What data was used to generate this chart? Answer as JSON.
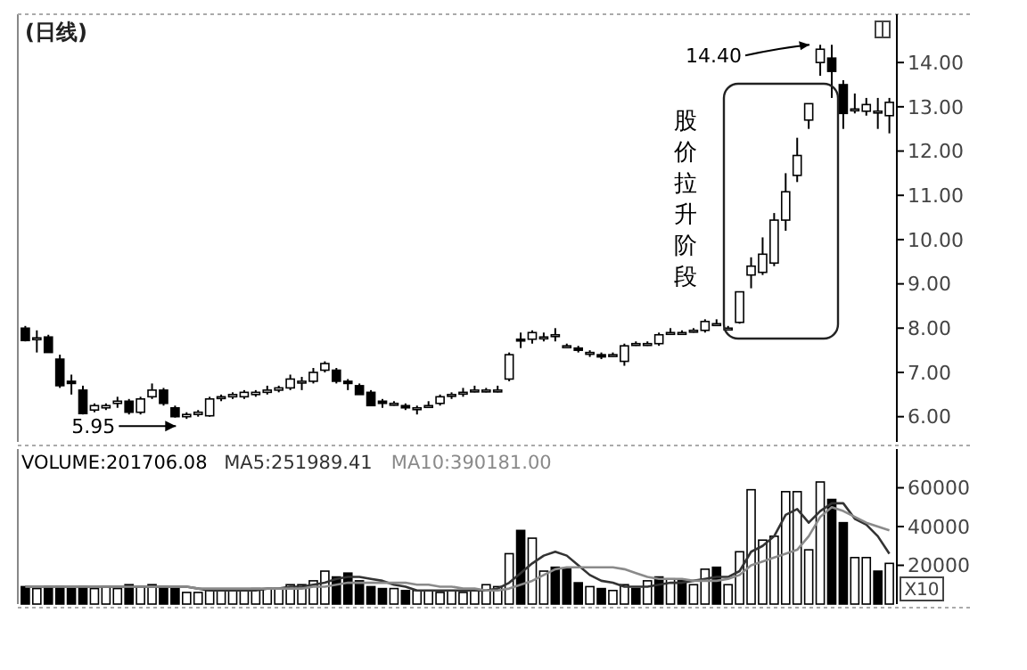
{
  "chart_data": [
    {
      "type": "candlestick",
      "title": "(日线)",
      "annotations": [
        "14.40",
        "5.95",
        "股价拉升阶段"
      ],
      "categories": [
        null,
        null,
        null,
        null,
        null,
        null,
        null,
        null,
        null,
        null,
        null,
        null,
        null,
        null,
        null,
        null,
        null,
        null,
        null,
        null,
        null,
        null,
        null,
        null,
        null,
        null,
        null,
        null,
        null,
        null,
        null,
        null,
        null,
        null,
        null,
        null,
        null,
        null,
        null,
        null,
        null,
        null,
        null,
        null,
        null,
        null,
        null,
        null,
        null,
        null,
        null,
        null,
        null,
        null,
        null,
        null,
        null,
        null,
        null,
        null,
        null,
        null,
        null,
        null,
        null,
        null,
        null,
        null,
        null,
        null,
        null,
        null,
        null,
        null,
        null,
        null
      ],
      "ohlc": [
        [
          8.0,
          8.05,
          7.7,
          7.72
        ],
        [
          7.75,
          7.95,
          7.45,
          7.78
        ],
        [
          7.8,
          7.85,
          7.45,
          7.45
        ],
        [
          7.3,
          7.4,
          6.65,
          6.7
        ],
        [
          6.8,
          6.95,
          6.5,
          6.75
        ],
        [
          6.6,
          6.7,
          6.05,
          6.07
        ],
        [
          6.15,
          6.3,
          6.1,
          6.25
        ],
        [
          6.2,
          6.3,
          6.15,
          6.25
        ],
        [
          6.3,
          6.45,
          6.2,
          6.35
        ],
        [
          6.35,
          6.4,
          6.05,
          6.1
        ],
        [
          6.1,
          6.45,
          6.05,
          6.4
        ],
        [
          6.45,
          6.75,
          6.4,
          6.6
        ],
        [
          6.6,
          6.65,
          6.25,
          6.3
        ],
        [
          6.2,
          6.25,
          5.98,
          6.0
        ],
        [
          6.0,
          6.1,
          5.95,
          6.05
        ],
        [
          6.05,
          6.15,
          6.0,
          6.1
        ],
        [
          6.02,
          6.45,
          6.0,
          6.4
        ],
        [
          6.42,
          6.5,
          6.35,
          6.45
        ],
        [
          6.45,
          6.55,
          6.4,
          6.5
        ],
        [
          6.45,
          6.6,
          6.4,
          6.55
        ],
        [
          6.5,
          6.6,
          6.45,
          6.55
        ],
        [
          6.55,
          6.7,
          6.5,
          6.6
        ],
        [
          6.6,
          6.7,
          6.55,
          6.65
        ],
        [
          6.65,
          6.95,
          6.6,
          6.85
        ],
        [
          6.8,
          6.9,
          6.6,
          6.8
        ],
        [
          6.8,
          7.1,
          6.75,
          7.0
        ],
        [
          7.05,
          7.25,
          7.0,
          7.2
        ],
        [
          7.05,
          7.1,
          6.75,
          6.8
        ],
        [
          6.8,
          6.85,
          6.6,
          6.75
        ],
        [
          6.7,
          6.75,
          6.5,
          6.5
        ],
        [
          6.55,
          6.6,
          6.25,
          6.25
        ],
        [
          6.35,
          6.4,
          6.2,
          6.3
        ],
        [
          6.3,
          6.35,
          6.25,
          6.3
        ],
        [
          6.25,
          6.3,
          6.15,
          6.2
        ],
        [
          6.2,
          6.25,
          6.05,
          6.2
        ],
        [
          6.25,
          6.35,
          6.2,
          6.25
        ],
        [
          6.3,
          6.5,
          6.25,
          6.45
        ],
        [
          6.5,
          6.55,
          6.4,
          6.5
        ],
        [
          6.55,
          6.65,
          6.45,
          6.55
        ],
        [
          6.6,
          6.7,
          6.55,
          6.6
        ],
        [
          6.6,
          6.65,
          6.55,
          6.6
        ],
        [
          6.6,
          6.7,
          6.55,
          6.6
        ],
        [
          6.85,
          7.45,
          6.8,
          7.4
        ],
        [
          7.75,
          7.9,
          7.55,
          7.72
        ],
        [
          7.75,
          7.95,
          7.65,
          7.9
        ],
        [
          7.8,
          7.9,
          7.7,
          7.8
        ],
        [
          7.85,
          8.0,
          7.7,
          7.85
        ],
        [
          7.6,
          7.65,
          7.55,
          7.6
        ],
        [
          7.55,
          7.6,
          7.45,
          7.5
        ],
        [
          7.45,
          7.5,
          7.35,
          7.45
        ],
        [
          7.4,
          7.45,
          7.3,
          7.35
        ],
        [
          7.4,
          7.45,
          7.35,
          7.4
        ],
        [
          7.25,
          7.65,
          7.15,
          7.6
        ],
        [
          7.65,
          7.7,
          7.6,
          7.65
        ],
        [
          7.65,
          7.7,
          7.6,
          7.65
        ],
        [
          7.65,
          7.9,
          7.6,
          7.85
        ],
        [
          7.9,
          8.0,
          7.85,
          7.9
        ],
        [
          7.9,
          7.95,
          7.85,
          7.9
        ],
        [
          7.95,
          8.0,
          7.9,
          7.95
        ],
        [
          7.95,
          8.2,
          7.9,
          8.15
        ],
        [
          8.1,
          8.2,
          8.05,
          8.1
        ],
        [
          8.0,
          8.05,
          7.95,
          8.0
        ],
        [
          8.13,
          8.82,
          8.1,
          8.82
        ],
        [
          9.2,
          9.6,
          8.9,
          9.4
        ],
        [
          9.26,
          10.05,
          9.2,
          9.67
        ],
        [
          9.47,
          10.6,
          9.4,
          10.44
        ],
        [
          10.44,
          11.5,
          10.2,
          11.08
        ],
        [
          11.45,
          12.3,
          11.3,
          11.9
        ],
        [
          12.7,
          13.07,
          12.5,
          13.07
        ],
        [
          14.0,
          14.4,
          13.7,
          14.3
        ],
        [
          14.1,
          14.4,
          13.2,
          13.8
        ],
        [
          13.5,
          13.6,
          12.5,
          12.85
        ],
        [
          12.95,
          13.3,
          12.85,
          12.95
        ],
        [
          12.9,
          13.2,
          12.8,
          13.05
        ],
        [
          12.9,
          13.2,
          12.5,
          12.9
        ],
        [
          12.8,
          13.2,
          12.4,
          13.1
        ]
      ],
      "ylim": [
        5.43,
        15.09
      ],
      "yticks": [
        {
          "value": 6,
          "label": "6.00"
        },
        {
          "value": 7,
          "label": "7.00"
        },
        {
          "value": 8,
          "label": "8.00"
        },
        {
          "value": 9,
          "label": "9.00"
        },
        {
          "value": 10,
          "label": "10.00"
        },
        {
          "value": 11,
          "label": "11.00"
        },
        {
          "value": 12,
          "label": "12.00"
        },
        {
          "value": 13,
          "label": "13.00"
        },
        {
          "value": 14,
          "label": "14.00"
        }
      ]
    },
    {
      "type": "bar",
      "ylabel": "X10",
      "legend": "top left",
      "categories": [
        null,
        null,
        null,
        null,
        null,
        null,
        null,
        null,
        null,
        null,
        null,
        null,
        null,
        null,
        null,
        null,
        null,
        null,
        null,
        null,
        null,
        null,
        null,
        null,
        null,
        null,
        null,
        null,
        null,
        null,
        null,
        null,
        null,
        null,
        null,
        null,
        null,
        null,
        null,
        null,
        null,
        null,
        null,
        null,
        null,
        null,
        null,
        null,
        null,
        null,
        null,
        null,
        null,
        null,
        null,
        null,
        null,
        null,
        null,
        null,
        null,
        null,
        null,
        null,
        null,
        null,
        null,
        null,
        null,
        null,
        null,
        null,
        null,
        null,
        null,
        null
      ],
      "series": [
        {
          "name": "VOLUME:201706.08",
          "type": "bar",
          "values": [
            9000,
            8000,
            9000,
            9000,
            8000,
            9000,
            8000,
            9000,
            8000,
            10000,
            9000,
            10000,
            9000,
            8000,
            6000,
            6000,
            7000,
            7000,
            7000,
            7000,
            8000,
            8000,
            8000,
            10000,
            10000,
            12000,
            17000,
            14000,
            16000,
            12000,
            9000,
            8000,
            8000,
            7000,
            7000,
            7000,
            6000,
            7000,
            6000,
            7000,
            10000,
            9000,
            26000,
            38000,
            34000,
            17000,
            19000,
            18000,
            11000,
            9000,
            8000,
            7000,
            10000,
            8000,
            12000,
            14000,
            13000,
            12000,
            10000,
            18000,
            19000,
            10000,
            27000,
            59000,
            33000,
            35000,
            58000,
            58000,
            28000,
            63000,
            54000,
            42000,
            24000,
            24000,
            17000,
            21000
          ],
          "colors": [
            "#000000",
            "#ffffff",
            "#000000",
            "#000000",
            "#000000",
            "#000000",
            "#ffffff",
            "#ffffff",
            "#ffffff",
            "#000000",
            "#ffffff",
            "#ffffff",
            "#000000",
            "#000000",
            "#ffffff",
            "#ffffff",
            "#ffffff",
            "#ffffff",
            "#ffffff",
            "#ffffff",
            "#ffffff",
            "#ffffff",
            "#ffffff",
            "#ffffff",
            "#ffffff",
            "#ffffff",
            "#ffffff",
            "#000000",
            "#000000",
            "#000000",
            "#000000",
            "#000000",
            "#ffffff",
            "#000000",
            "#ffffff",
            "#ffffff",
            "#ffffff",
            "#ffffff",
            "#ffffff",
            "#ffffff",
            "#ffffff",
            "#ffffff",
            "#ffffff",
            "#000000",
            "#ffffff",
            "#ffffff",
            "#000000",
            "#000000",
            "#000000",
            "#ffffff",
            "#000000",
            "#ffffff",
            "#ffffff",
            "#000000",
            "#ffffff",
            "#000000",
            "#ffffff",
            "#000000",
            "#ffffff",
            "#ffffff",
            "#000000",
            "#ffffff",
            "#ffffff",
            "#ffffff",
            "#ffffff",
            "#ffffff",
            "#ffffff",
            "#ffffff",
            "#ffffff",
            "#ffffff",
            "#000000",
            "#000000",
            "#ffffff",
            "#ffffff",
            "#000000",
            "#ffffff"
          ]
        },
        {
          "name": "MA5:251989.41",
          "type": "line",
          "color": "#333333",
          "values": [
            9000,
            9000,
            9000,
            9000,
            9000,
            9000,
            9000,
            9000,
            9000,
            9000,
            9000,
            9000,
            9000,
            9000,
            9000,
            8000,
            7000,
            7000,
            7000,
            7000,
            7000,
            8000,
            8000,
            9000,
            9000,
            10000,
            11000,
            13000,
            14000,
            14000,
            13000,
            12000,
            10000,
            9000,
            7000,
            7000,
            7000,
            7000,
            7000,
            7000,
            7000,
            8000,
            11000,
            16000,
            21000,
            25000,
            27000,
            25000,
            20000,
            15000,
            12000,
            11000,
            9000,
            9000,
            9000,
            10000,
            11000,
            11000,
            12000,
            13000,
            14000,
            14000,
            17000,
            27000,
            30000,
            35000,
            46000,
            49000,
            42000,
            48000,
            52000,
            52000,
            44000,
            41000,
            35000,
            26000
          ]
        },
        {
          "name": "MA10:390181.00",
          "type": "line",
          "color": "#8a8a8a",
          "values": [
            9000,
            9000,
            9000,
            9000,
            9000,
            9000,
            9000,
            9000,
            9000,
            9000,
            9000,
            9000,
            9000,
            9000,
            9000,
            8000,
            8000,
            8000,
            8000,
            8000,
            8000,
            8000,
            8000,
            8000,
            8000,
            9000,
            9000,
            10000,
            11000,
            11000,
            11000,
            11000,
            11000,
            11000,
            10000,
            10000,
            9000,
            9000,
            8000,
            8000,
            7000,
            7000,
            8000,
            10000,
            12000,
            15000,
            18000,
            19000,
            19000,
            19000,
            19000,
            19000,
            18000,
            16000,
            14000,
            13000,
            13000,
            13000,
            12000,
            12000,
            12000,
            13000,
            15000,
            20000,
            22000,
            24000,
            26000,
            28000,
            35000,
            45000,
            50000,
            48000,
            45000,
            42000,
            40000,
            38000
          ]
        }
      ],
      "ylim": [
        0,
        80000
      ],
      "yticks": [
        20000,
        40000,
        60000
      ]
    }
  ]
}
